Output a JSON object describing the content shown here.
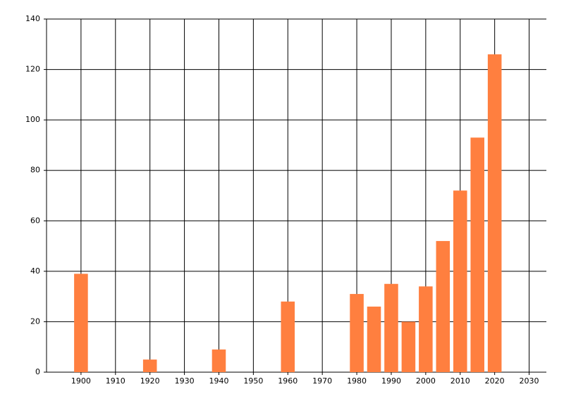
{
  "chart_data": {
    "type": "bar",
    "x": [
      1900,
      1920,
      1940,
      1960,
      1980,
      1985,
      1990,
      1995,
      2000,
      2005,
      2010,
      2015,
      2020
    ],
    "values": [
      39,
      5,
      9,
      28,
      31,
      26,
      35,
      20,
      34,
      52,
      72,
      93,
      126
    ],
    "color": "#ff7f3f",
    "xlim": [
      1890,
      2035
    ],
    "xticks": [
      1900,
      1910,
      1920,
      1930,
      1940,
      1950,
      1960,
      1970,
      1980,
      1990,
      2000,
      2010,
      2020,
      2030
    ],
    "ylim": [
      0,
      140
    ],
    "yticks": [
      0,
      20,
      40,
      60,
      80,
      100,
      120,
      140
    ],
    "grid": true
  }
}
